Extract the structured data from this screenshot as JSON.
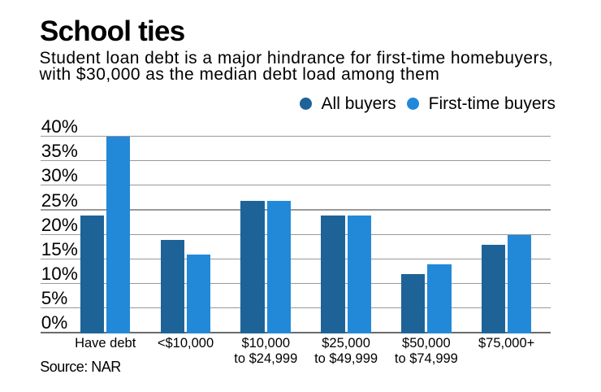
{
  "title": "School ties",
  "subtitle": {
    "line1": "Student loan debt is a major hindrance for first-time homebuyers,",
    "line2": "with $30,000 as the median debt load among them"
  },
  "source": "Source: NAR",
  "legend": {
    "items": [
      {
        "label": "All buyers",
        "color": "#1d6398"
      },
      {
        "label": "First-time buyers",
        "color": "#2289d9"
      }
    ]
  },
  "chart_data": {
    "type": "bar",
    "title": "School ties",
    "subtitle": "Student loan debt is a major hindrance for first-time homebuyers, with $30,000 as the median debt load among them",
    "categories": [
      "Have debt",
      "<$10,000",
      "$10,000\nto $24,999",
      "$25,000\nto $49,999",
      "$50,000\nto $74,999",
      "$75,000+"
    ],
    "series": [
      {
        "name": "All buyers",
        "color": "#1d6398",
        "values": [
          24,
          19,
          27,
          24,
          12,
          18
        ]
      },
      {
        "name": "First-time buyers",
        "color": "#2289d9",
        "values": [
          40,
          16,
          27,
          24,
          14,
          20
        ]
      }
    ],
    "xlabel": "",
    "ylabel": "",
    "ylim": [
      0,
      40
    ],
    "ytick_step": 5,
    "ytick_labels": [
      "0%",
      "5%",
      "10%",
      "15%",
      "20%",
      "25%",
      "30%",
      "35%",
      "40%"
    ],
    "grid": true,
    "legend_position": "top-right",
    "source": "Source: NAR"
  },
  "colors": {
    "background": "#ffffff",
    "text": "#000000",
    "gridline": "#999999",
    "axisline": "#6b6b6b",
    "all_buyers": "#1d6398",
    "first_time_buyers": "#2289d9"
  }
}
